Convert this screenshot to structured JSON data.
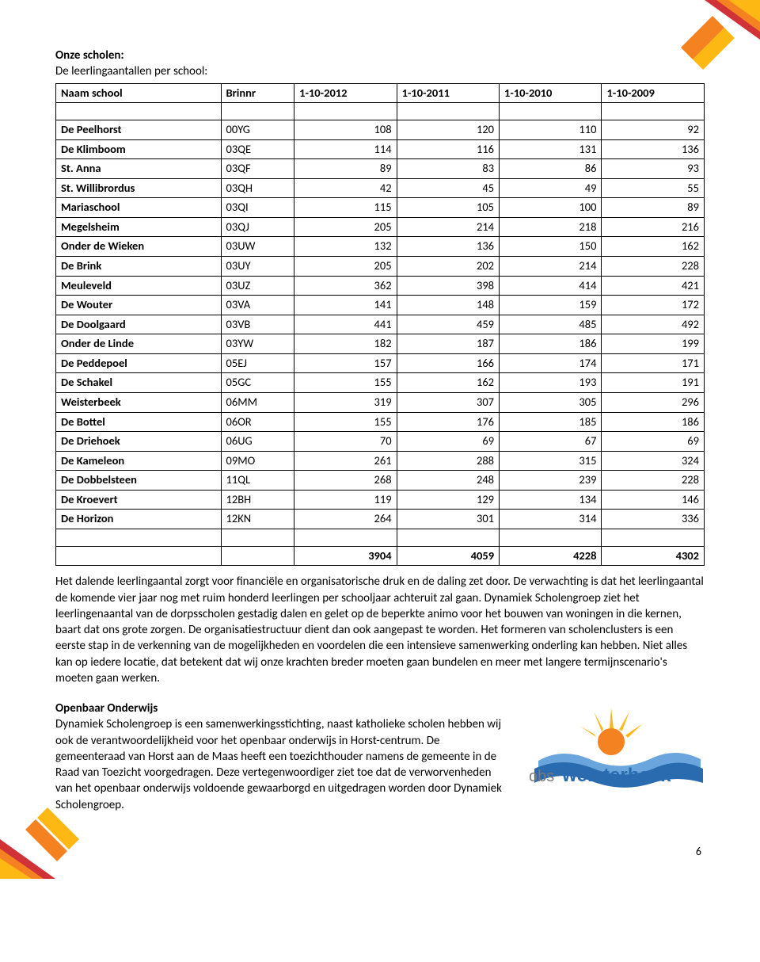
{
  "colors": {
    "orange": "#f58220",
    "yellow": "#fdb813",
    "red": "#d03238",
    "text": "#000000",
    "border": "#000000",
    "bg": "#ffffff",
    "logo_orange": "#f58220",
    "logo_yellow": "#fdb813",
    "logo_blue": "#2a6bb0",
    "logo_lightblue": "#6aa5dd"
  },
  "typography": {
    "body_font": "Calibri, Arial, sans-serif",
    "body_fontsize": 15,
    "table_fontsize": 14.5,
    "bold_weight": 700
  },
  "heading": {
    "title": "Onze scholen:",
    "subtitle": "De leerlingaantallen per school:"
  },
  "table": {
    "columns": [
      "Naam school",
      "Brinnr",
      "1-10-2012",
      "1-10-2011",
      "1-10-2010",
      "1-10-2009"
    ],
    "col_align": [
      "left",
      "left",
      "right",
      "right",
      "right",
      "right"
    ],
    "rows": [
      [
        "De Peelhorst",
        "00YG",
        108,
        120,
        110,
        92
      ],
      [
        "De Klimboom",
        "03QE",
        114,
        116,
        131,
        136
      ],
      [
        "St. Anna",
        "03QF",
        89,
        83,
        86,
        93
      ],
      [
        "St. Willibrordus",
        "03QH",
        42,
        45,
        49,
        55
      ],
      [
        "Mariaschool",
        "03QI",
        115,
        105,
        100,
        89
      ],
      [
        "Megelsheim",
        "03QJ",
        205,
        214,
        218,
        216
      ],
      [
        "Onder de Wieken",
        "03UW",
        132,
        136,
        150,
        162
      ],
      [
        "De Brink",
        "03UY",
        205,
        202,
        214,
        228
      ],
      [
        "Meuleveld",
        "03UZ",
        362,
        398,
        414,
        421
      ],
      [
        "De Wouter",
        "03VA",
        141,
        148,
        159,
        172
      ],
      [
        "De Doolgaard",
        "03VB",
        441,
        459,
        485,
        492
      ],
      [
        "Onder de Linde",
        "03YW",
        182,
        187,
        186,
        199
      ],
      [
        "De Peddepoel",
        "05EJ",
        157,
        166,
        174,
        171
      ],
      [
        "De Schakel",
        "05GC",
        155,
        162,
        193,
        191
      ],
      [
        "Weisterbeek",
        "06MM",
        319,
        307,
        305,
        296
      ],
      [
        "De Bottel",
        "06OR",
        155,
        176,
        185,
        186
      ],
      [
        "De Driehoek",
        "06UG",
        70,
        69,
        67,
        69
      ],
      [
        "De Kameleon",
        "09MO",
        261,
        288,
        315,
        324
      ],
      [
        "De Dobbelsteen",
        "11QL",
        268,
        248,
        239,
        228
      ],
      [
        "De Kroevert",
        "12BH",
        119,
        129,
        134,
        146
      ],
      [
        "De Horizon",
        "12KN",
        264,
        301,
        314,
        336
      ]
    ],
    "totals": [
      "",
      "",
      3904,
      4059,
      4228,
      4302
    ]
  },
  "paragraph1": "Het dalende leerlingaantal zorgt voor financiële en organisatorische druk en de daling zet door. De verwachting is dat het leerlingaantal de komende vier jaar nog met ruim honderd leerlingen per schooljaar achteruit zal gaan. Dynamiek Scholengroep ziet het leerlingenaantal van de dorpsscholen gestadig dalen en gelet op de beperkte animo voor het bouwen van woningen in die kernen, baart dat ons grote zorgen. De organisatiestructuur dient dan ook aangepast te worden. Het formeren van scholenclusters is een eerste stap in de verkenning van de mogelijkheden en voordelen die een intensieve samenwerking onderling kan hebben. Niet alles kan op iedere locatie, dat betekent dat wij onze krachten breder moeten gaan bundelen en meer met langere termijnscenario's moeten gaan werken.",
  "section2_title": "Openbaar Onderwijs",
  "paragraph2": "Dynamiek Scholengroep is een samenwerkingsstichting, naast katholieke scholen hebben wij ook de verantwoordelijkheid voor het openbaar onderwijs in Horst-centrum. De gemeenteraad van Horst aan de Maas heeft een toezichthouder namens de gemeente in de Raad van Toezicht voorgedragen. Deze vertegenwoordiger ziet toe dat de verworvenheden van het openbaar onderwijs voldoende gewaarborgd en uitgedragen worden door Dynamiek Scholengroep.",
  "logo_text_prefix": "obs",
  "logo_text_main": "weisterbeek",
  "page_number": "6"
}
